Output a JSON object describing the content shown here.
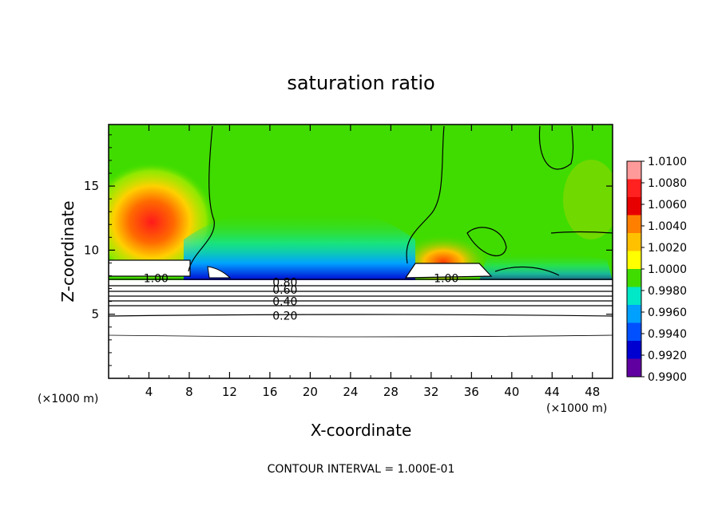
{
  "chart_data": {
    "type": "heatmap",
    "title": "saturation ratio",
    "xlabel": "X-coordinate",
    "ylabel": "Z-coordinate",
    "x_unit_left": "(×1000 m)",
    "x_unit_right": "(×1000 m)",
    "xlim": [
      0,
      50
    ],
    "ylim": [
      0,
      19.8
    ],
    "x_ticks": [
      4,
      8,
      12,
      16,
      20,
      24,
      28,
      32,
      36,
      40,
      44,
      48
    ],
    "y_ticks": [
      5,
      10,
      15
    ],
    "colorbar": {
      "levels": [
        "1.0100",
        "1.0080",
        "1.0060",
        "1.0040",
        "1.0020",
        "1.0000",
        "0.9980",
        "0.9960",
        "0.9940",
        "0.9920",
        "0.9900"
      ],
      "colors": [
        "#ff9a9a",
        "#ff2020",
        "#e60000",
        "#ff8000",
        "#ffc000",
        "#ffff00",
        "#40dc00",
        "#00e8c8",
        "#00a0ff",
        "#0050ff",
        "#0000d0",
        "#6000a0"
      ]
    },
    "contours": [
      {
        "label": "1.00",
        "x": 4.7,
        "y": 7.8
      },
      {
        "label": "1.00",
        "x": 33.5,
        "y": 7.8
      },
      {
        "label": "0.80",
        "x": 17.5,
        "y": 7.5
      },
      {
        "label": "0.60",
        "x": 17.5,
        "y": 6.9
      },
      {
        "label": "0.40",
        "x": 17.5,
        "y": 6.0
      },
      {
        "label": "0.20",
        "x": 17.5,
        "y": 4.9
      }
    ],
    "footer": "CONTOUR INTERVAL = 1.000E-01"
  }
}
